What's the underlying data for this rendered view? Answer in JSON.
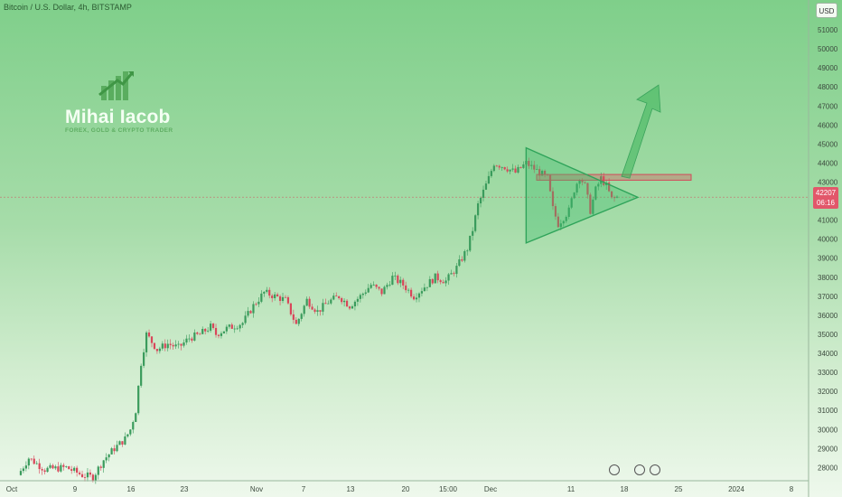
{
  "header": {
    "title": "Bitcoin / U.S. Dollar, 4h, BITSTAMP",
    "currency": "USD"
  },
  "brand": {
    "name": "Mihai Iacob",
    "tagline": "FOREX, GOLD & CRYPTO TRADER"
  },
  "live_price": {
    "value": "42207",
    "countdown": "06:16"
  },
  "chart_data": {
    "type": "candlestick",
    "symbol": "BTCUSD",
    "interval": "4h",
    "exchange": "BITSTAMP",
    "y_axis": {
      "ticks": [
        28000,
        29000,
        30000,
        31000,
        32000,
        33000,
        34000,
        35000,
        36000,
        37000,
        38000,
        39000,
        40000,
        41000,
        42000,
        43000,
        44000,
        45000,
        46000,
        47000,
        48000,
        49000,
        50000,
        51000
      ],
      "ylim": [
        27400,
        52000
      ]
    },
    "x_axis": {
      "tick_labels": [
        "Oct",
        "9",
        "16",
        "23",
        "Nov",
        "7",
        "13",
        "20",
        "15:00",
        "Dec",
        "11",
        "18",
        "25",
        "2024",
        "8"
      ]
    },
    "price_path": [
      [
        0,
        27600
      ],
      [
        2,
        28500
      ],
      [
        5,
        27900
      ],
      [
        9,
        28000
      ],
      [
        12,
        27600
      ],
      [
        14,
        27500
      ],
      [
        16,
        28400
      ],
      [
        18,
        29000
      ],
      [
        20,
        29500
      ],
      [
        21,
        30000
      ],
      [
        22,
        31000
      ],
      [
        23,
        33500
      ],
      [
        24,
        35000
      ],
      [
        26,
        34200
      ],
      [
        28,
        34500
      ],
      [
        30,
        34300
      ],
      [
        32,
        34800
      ],
      [
        34,
        35000
      ],
      [
        36,
        35400
      ],
      [
        37,
        35000
      ],
      [
        39,
        35300
      ],
      [
        42,
        35600
      ],
      [
        44,
        36500
      ],
      [
        46,
        37200
      ],
      [
        48,
        37000
      ],
      [
        50,
        36800
      ],
      [
        52,
        35500
      ],
      [
        54,
        36800
      ],
      [
        56,
        36200
      ],
      [
        58,
        36700
      ],
      [
        60,
        37000
      ],
      [
        62,
        36500
      ],
      [
        64,
        37000
      ],
      [
        66,
        37600
      ],
      [
        68,
        37200
      ],
      [
        70,
        38000
      ],
      [
        72,
        37600
      ],
      [
        74,
        37000
      ],
      [
        76,
        37500
      ],
      [
        78,
        38000
      ],
      [
        80,
        37800
      ],
      [
        82,
        38500
      ],
      [
        84,
        39500
      ],
      [
        85,
        40500
      ],
      [
        86,
        41800
      ],
      [
        87,
        42500
      ],
      [
        88,
        43200
      ],
      [
        89,
        44000
      ],
      [
        91,
        43800
      ],
      [
        93,
        43500
      ],
      [
        95,
        44000
      ],
      [
        97,
        43600
      ],
      [
        99,
        43200
      ],
      [
        100,
        41600
      ],
      [
        101,
        40800
      ],
      [
        103,
        41500
      ],
      [
        104,
        42600
      ],
      [
        105,
        43300
      ],
      [
        106,
        42800
      ],
      [
        107,
        41500
      ],
      [
        108,
        42600
      ],
      [
        109,
        43200
      ],
      [
        110,
        42800
      ],
      [
        111,
        42100
      ],
      [
        112,
        42207
      ]
    ],
    "resistance_zone": [
      43100,
      43400
    ],
    "triangle_apex": [
      112,
      42200
    ],
    "triangle_top": [
      95,
      44800
    ],
    "triangle_bottom": [
      95,
      39800
    ],
    "projection_target": 48100,
    "current_price": 42207
  }
}
